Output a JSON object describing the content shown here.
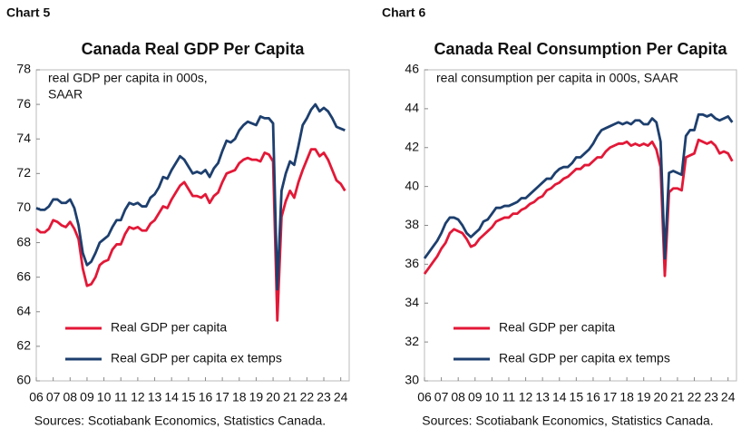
{
  "chart_data": [
    {
      "type": "line",
      "label": "Chart 5",
      "title": "Canada Real GDP Per Capita",
      "annotation": [
        "real GDP per capita in 000s,",
        "SAAR"
      ],
      "source": "Sources: Scotiabank Economics, Statistics Canada.",
      "legend": "lower left",
      "xlim": [
        6,
        24.5
      ],
      "ylim": [
        60,
        78
      ],
      "yticks": [
        60,
        62,
        64,
        66,
        68,
        70,
        72,
        74,
        76,
        78
      ],
      "xticks": [
        {
          "value": 6,
          "label": "06"
        },
        {
          "value": 7,
          "label": "07"
        },
        {
          "value": 8,
          "label": "08"
        },
        {
          "value": 9,
          "label": "09"
        },
        10,
        11,
        12,
        13,
        14,
        15,
        16,
        17,
        18,
        19,
        20,
        21,
        22,
        23,
        24
      ],
      "x": [
        6,
        6.25,
        6.5,
        6.75,
        7,
        7.25,
        7.5,
        7.75,
        8,
        8.25,
        8.5,
        8.75,
        9,
        9.25,
        9.5,
        9.75,
        10,
        10.25,
        10.5,
        10.75,
        11,
        11.25,
        11.5,
        11.75,
        12,
        12.25,
        12.5,
        12.75,
        13,
        13.25,
        13.5,
        13.75,
        14,
        14.25,
        14.5,
        14.75,
        15,
        15.25,
        15.5,
        15.75,
        16,
        16.25,
        16.5,
        16.75,
        17,
        17.25,
        17.5,
        17.75,
        18,
        18.25,
        18.5,
        18.75,
        19,
        19.25,
        19.5,
        19.75,
        20,
        20.25,
        20.5,
        20.75,
        21,
        21.25,
        21.5,
        21.75,
        22,
        22.25,
        22.5,
        22.75,
        23,
        23.25,
        23.5,
        23.75,
        24,
        24.25
      ],
      "series": [
        {
          "name": "Real GDP per capita",
          "color": "#e31837",
          "values": [
            68.8,
            68.6,
            68.6,
            68.8,
            69.3,
            69.2,
            69.0,
            68.9,
            69.2,
            68.8,
            68.2,
            66.5,
            65.5,
            65.6,
            66.0,
            66.7,
            66.9,
            67.0,
            67.6,
            67.9,
            67.9,
            68.5,
            68.9,
            68.8,
            68.9,
            68.7,
            68.7,
            69.1,
            69.3,
            69.7,
            70.1,
            70.0,
            70.5,
            70.9,
            71.3,
            71.5,
            71.1,
            70.7,
            70.7,
            70.6,
            70.8,
            70.3,
            70.7,
            70.9,
            71.5,
            72.0,
            72.1,
            72.2,
            72.6,
            72.8,
            72.9,
            72.8,
            72.8,
            72.7,
            73.2,
            73.1,
            72.7,
            63.5,
            69.5,
            70.4,
            71.0,
            70.6,
            71.5,
            72.2,
            72.8,
            73.4,
            73.4,
            73.0,
            73.2,
            72.8,
            72.2,
            71.6,
            71.4,
            71.0
          ]
        },
        {
          "name": "Real GDP per capita ex temps",
          "color": "#1d3f6e",
          "values": [
            70.0,
            69.9,
            69.9,
            70.1,
            70.5,
            70.5,
            70.3,
            70.3,
            70.5,
            70.0,
            69.0,
            67.4,
            66.7,
            66.9,
            67.4,
            68.0,
            68.2,
            68.4,
            68.9,
            69.3,
            69.3,
            69.9,
            70.3,
            70.2,
            70.3,
            70.1,
            70.1,
            70.6,
            70.8,
            71.2,
            71.8,
            71.7,
            72.2,
            72.6,
            73.0,
            72.8,
            72.4,
            72.0,
            72.1,
            72.0,
            72.2,
            71.8,
            72.3,
            72.6,
            73.3,
            73.9,
            73.8,
            74.0,
            74.5,
            74.8,
            75.0,
            74.9,
            74.8,
            75.3,
            75.2,
            75.2,
            74.9,
            65.3,
            71.0,
            72.0,
            72.7,
            72.5,
            73.6,
            74.8,
            75.2,
            75.7,
            76.0,
            75.6,
            75.8,
            75.6,
            75.2,
            74.7,
            74.6,
            74.5
          ]
        }
      ]
    },
    {
      "type": "line",
      "label": "Chart 6",
      "title": "Canada Real Consumption Per Capita",
      "annotation": [
        "real consumption per capita in 000s, SAAR"
      ],
      "source": "Sources: Scotiabank Economics, Statistics Canada.",
      "legend": "lower left",
      "xlim": [
        6,
        24.5
      ],
      "ylim": [
        30,
        46
      ],
      "yticks": [
        30,
        32,
        34,
        36,
        38,
        40,
        42,
        44,
        46
      ],
      "xticks": [
        {
          "value": 6,
          "label": "06"
        },
        {
          "value": 7,
          "label": "07"
        },
        {
          "value": 8,
          "label": "08"
        },
        {
          "value": 9,
          "label": "09"
        },
        10,
        11,
        12,
        13,
        14,
        15,
        16,
        17,
        18,
        19,
        20,
        21,
        22,
        23,
        24
      ],
      "x": [
        6,
        6.25,
        6.5,
        6.75,
        7,
        7.25,
        7.5,
        7.75,
        8,
        8.25,
        8.5,
        8.75,
        9,
        9.25,
        9.5,
        9.75,
        10,
        10.25,
        10.5,
        10.75,
        11,
        11.25,
        11.5,
        11.75,
        12,
        12.25,
        12.5,
        12.75,
        13,
        13.25,
        13.5,
        13.75,
        14,
        14.25,
        14.5,
        14.75,
        15,
        15.25,
        15.5,
        15.75,
        16,
        16.25,
        16.5,
        16.75,
        17,
        17.25,
        17.5,
        17.75,
        18,
        18.25,
        18.5,
        18.75,
        19,
        19.25,
        19.5,
        19.75,
        20,
        20.25,
        20.5,
        20.75,
        21,
        21.25,
        21.5,
        21.75,
        22,
        22.25,
        22.5,
        22.75,
        23,
        23.25,
        23.5,
        23.75,
        24,
        24.25
      ],
      "series": [
        {
          "name": "Real GDP per capita",
          "color": "#e31837",
          "values": [
            35.5,
            35.8,
            36.1,
            36.4,
            36.8,
            37.1,
            37.6,
            37.8,
            37.7,
            37.6,
            37.3,
            36.9,
            37.0,
            37.3,
            37.5,
            37.7,
            37.9,
            38.2,
            38.3,
            38.4,
            38.4,
            38.6,
            38.6,
            38.8,
            38.9,
            39.1,
            39.2,
            39.4,
            39.5,
            39.8,
            39.9,
            40.1,
            40.2,
            40.4,
            40.5,
            40.7,
            40.9,
            40.9,
            41.1,
            41.1,
            41.3,
            41.5,
            41.5,
            41.8,
            42.0,
            42.1,
            42.2,
            42.2,
            42.3,
            42.1,
            42.2,
            42.1,
            42.2,
            42.1,
            42.3,
            41.9,
            41.0,
            35.4,
            39.7,
            39.9,
            39.9,
            39.8,
            41.5,
            41.6,
            41.7,
            42.4,
            42.3,
            42.2,
            42.3,
            42.1,
            41.7,
            41.8,
            41.7,
            41.3
          ]
        },
        {
          "name": "Real GDP per capita ex temps",
          "color": "#1d3f6e",
          "values": [
            36.3,
            36.6,
            36.9,
            37.2,
            37.6,
            38.1,
            38.4,
            38.4,
            38.3,
            38.0,
            37.6,
            37.4,
            37.6,
            37.8,
            38.2,
            38.3,
            38.6,
            38.9,
            38.9,
            39.0,
            39.0,
            39.1,
            39.2,
            39.4,
            39.4,
            39.6,
            39.8,
            40.0,
            40.2,
            40.4,
            40.4,
            40.7,
            40.9,
            41.0,
            41.0,
            41.2,
            41.5,
            41.5,
            41.7,
            41.9,
            42.2,
            42.6,
            42.9,
            43.0,
            43.1,
            43.2,
            43.3,
            43.2,
            43.3,
            43.2,
            43.4,
            43.4,
            43.2,
            43.2,
            43.5,
            43.3,
            42.3,
            36.3,
            40.7,
            40.8,
            40.7,
            40.6,
            42.6,
            42.9,
            42.9,
            43.7,
            43.7,
            43.6,
            43.7,
            43.5,
            43.4,
            43.5,
            43.6,
            43.3
          ]
        }
      ]
    }
  ]
}
